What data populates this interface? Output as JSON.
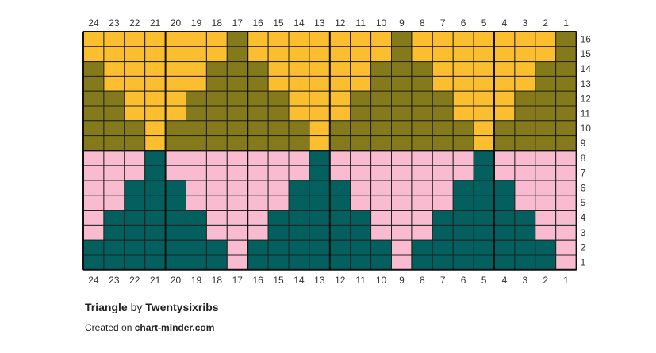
{
  "chart_data": {
    "type": "colorwork-grid",
    "title": "Triangle",
    "by_word": "by",
    "author": "Twentysixribs",
    "credit_prefix": "Created on",
    "credit_site": "chart-minder.com",
    "columns": 24,
    "rows": 16,
    "column_labels": [
      "24",
      "23",
      "22",
      "21",
      "20",
      "19",
      "18",
      "17",
      "16",
      "15",
      "14",
      "13",
      "12",
      "11",
      "10",
      "9",
      "8",
      "7",
      "6",
      "5",
      "4",
      "3",
      "2",
      "1"
    ],
    "row_labels": [
      "16",
      "15",
      "14",
      "13",
      "12",
      "11",
      "10",
      "9",
      "8",
      "7",
      "6",
      "5",
      "4",
      "3",
      "2",
      "1"
    ],
    "colors": {
      "Y": "#fbbe2e",
      "O": "#857a1b",
      "P": "#f8bbd0",
      "T": "#03605e"
    },
    "grid": [
      "YYYYYYYOYYYYYYYOYYYYYYYO",
      "YYYYYYYOYYYYYYYOYYYYYYYO",
      "OYYYYYOOOYYYYYOOOYYYYYOO",
      "OYYYYYOOOYYYYYOOOYYYYYOO",
      "OOYYYOOOOOYYYOOOOOYYYOOO",
      "OOYYYOOOOOYYYOOOOOYYYOOO",
      "OOOYOOOOOOOYOOOOOOOYOOOO",
      "OOOYOOOOOOOYOOOOOOOYOOOO",
      "PPPTPPPPPPPTPPPPPPPTPPPP",
      "PPPTPPPPPPPTPPPPPPPTPPPP",
      "PPTTTPPPPPTTTPPPPPTTTPPP",
      "PPTTTPPPPPTTTPPPPPTTTPPP",
      "PTTTTTPPPTTTTTPPPTTTTTPP",
      "PTTTTTPPPTTTTTPPPTTTTTPP",
      "TTTTTTTPTTTTTTTPTTTTTTTP",
      "TTTTTTTPTTTTTTTPTTTTTTTP"
    ]
  }
}
